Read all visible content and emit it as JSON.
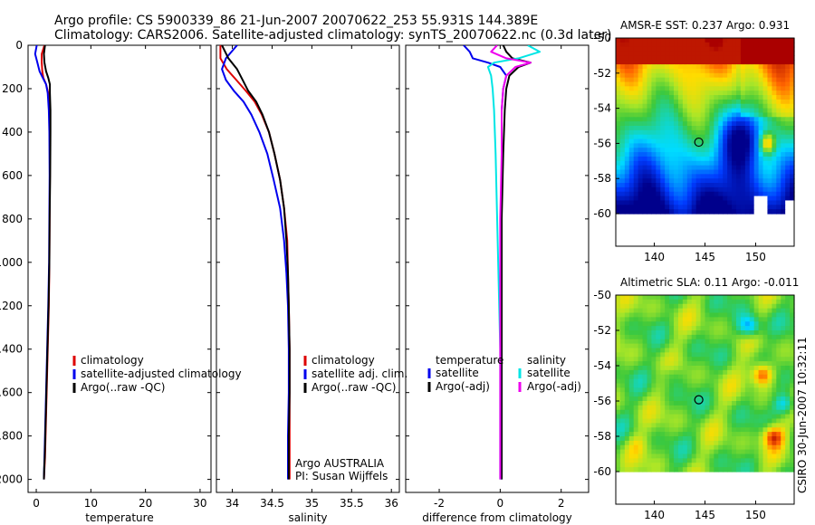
{
  "chart_data": {
    "type": "line",
    "title": {
      "line1": "Argo profile: CS 5900339_86 21-Jun-2007 20070622_253 55.931S 144.389E",
      "line2": "Climatology: CARS2006. Satellite-adjusted climatology: synTS_20070622.nc (0.3d later)"
    },
    "colors": {
      "climatology": "#dd0000",
      "satellite": "#0000ee",
      "argo": "#000000",
      "cyan": "#00e5e5",
      "magenta": "#ee00ee"
    },
    "depth_axis": {
      "ylim": [
        0,
        2060
      ],
      "ticks": [
        "0",
        "200",
        "400",
        "600",
        "800",
        "1000",
        "1200",
        "1400",
        "1600",
        "1800",
        "2000"
      ],
      "tick_values": [
        0,
        200,
        400,
        600,
        800,
        1000,
        1200,
        1400,
        1600,
        1800,
        2000
      ]
    },
    "panels": [
      {
        "id": "temperature",
        "xlabel": "temperature",
        "xlim": [
          -1.5,
          32
        ],
        "xticks": [
          "0",
          "10",
          "20",
          "30"
        ],
        "xtick_values": [
          0,
          10,
          20,
          30
        ],
        "legend": [
          "climatology",
          "satellite-adjusted climatology",
          "Argo(..raw -QC)"
        ],
        "series": [
          {
            "name": "climatology",
            "color": "red",
            "x": [
              1.5,
              1.0,
              1.0,
              1.1,
              1.3,
              1.8,
              2.2,
              2.4,
              2.5,
              2.5,
              2.45,
              2.4,
              2.3,
              2.1,
              1.9,
              1.7,
              1.6,
              1.5,
              1.4
            ],
            "y": [
              0,
              40,
              80,
              120,
              150,
              180,
              220,
              300,
              400,
              600,
              800,
              1000,
              1200,
              1400,
              1600,
              1800,
              1900,
              1950,
              2000
            ]
          },
          {
            "name": "satellite",
            "color": "blue",
            "x": [
              0.1,
              -0.2,
              0.2,
              0.6,
              1.2,
              1.8,
              2.1,
              2.3,
              2.4,
              2.45,
              2.4,
              2.35,
              2.2,
              2.0,
              1.8,
              1.6,
              1.5,
              1.45,
              1.4
            ],
            "y": [
              0,
              40,
              80,
              120,
              150,
              180,
              220,
              300,
              400,
              600,
              800,
              1000,
              1200,
              1400,
              1600,
              1800,
              1900,
              1950,
              2000
            ]
          },
          {
            "name": "argo",
            "color": "black",
            "x": [
              1.6,
              1.4,
              1.5,
              1.8,
              2.2,
              2.5,
              2.5,
              2.6,
              2.6,
              2.55,
              2.45,
              2.4,
              2.25,
              2.05,
              1.85,
              1.65,
              1.55,
              1.45,
              1.4
            ],
            "y": [
              0,
              40,
              80,
              120,
              150,
              180,
              220,
              300,
              400,
              600,
              800,
              1000,
              1200,
              1400,
              1600,
              1800,
              1900,
              1950,
              2000
            ]
          }
        ]
      },
      {
        "id": "salinity",
        "xlabel": "salinity",
        "xlim": [
          33.8,
          36.1
        ],
        "xticks": [
          "34",
          "34.5",
          "35",
          "35.5",
          "36"
        ],
        "xtick_values": [
          34,
          34.5,
          35,
          35.5,
          36
        ],
        "legend": [
          "climatology",
          "satellite adj. clim.",
          "Argo(..raw -QC)"
        ],
        "note": [
          "Argo AUSTRALIA",
          "PI: Susan Wijffels"
        ],
        "series": [
          {
            "name": "climatology",
            "color": "red",
            "x": [
              33.85,
              33.85,
              33.93,
              34.05,
              34.17,
              34.28,
              34.37,
              34.46,
              34.53,
              34.6,
              34.65,
              34.69,
              34.7,
              34.71,
              34.72,
              34.72,
              34.72,
              34.72
            ],
            "y": [
              0,
              60,
              110,
              160,
              210,
              260,
              320,
              400,
              500,
              620,
              750,
              900,
              1050,
              1200,
              1400,
              1600,
              1800,
              2000
            ]
          },
          {
            "name": "satellite",
            "color": "blue",
            "x": [
              34.06,
              33.92,
              33.87,
              33.92,
              34.02,
              34.14,
              34.24,
              34.34,
              34.44,
              34.52,
              34.6,
              34.65,
              34.68,
              34.7,
              34.71,
              34.71,
              34.7,
              34.7
            ],
            "y": [
              0,
              60,
              110,
              160,
              210,
              260,
              320,
              400,
              500,
              620,
              750,
              900,
              1050,
              1200,
              1400,
              1600,
              1800,
              2000
            ]
          },
          {
            "name": "argo",
            "color": "black",
            "x": [
              33.87,
              33.95,
              34.06,
              34.13,
              34.2,
              34.3,
              34.38,
              34.46,
              34.53,
              34.6,
              34.65,
              34.68,
              34.7,
              34.71,
              34.72,
              34.72,
              34.71,
              34.71
            ],
            "y": [
              0,
              60,
              110,
              160,
              210,
              260,
              320,
              400,
              500,
              620,
              750,
              900,
              1050,
              1200,
              1400,
              1600,
              1800,
              2000
            ]
          }
        ]
      },
      {
        "id": "difference",
        "xlabel": "difference from climatology",
        "xlim": [
          -3.1,
          2.9
        ],
        "xticks": [
          "-2",
          "0",
          "2"
        ],
        "xtick_values": [
          -2,
          0,
          2
        ],
        "legend_left_title": "temperature",
        "legend_right_title": "salinity",
        "legend_left": [
          "satellite",
          "Argo(-adj)"
        ],
        "legend_right": [
          "satellite",
          "Argo(-adj)"
        ],
        "series": [
          {
            "name": "temperature satellite",
            "color": "blue",
            "x": [
              -1.2,
              -1.0,
              -0.9,
              -0.4,
              0.0,
              0.2,
              0.1,
              0.05,
              0.05,
              0.05,
              0.05,
              0.05,
              0.05,
              0.05,
              0.05
            ],
            "y": [
              0,
              30,
              60,
              80,
              100,
              140,
              200,
              300,
              500,
              800,
              1100,
              1400,
              1600,
              1800,
              2000
            ]
          },
          {
            "name": "temperature argo",
            "color": "black",
            "x": [
              0.1,
              0.2,
              0.4,
              1.0,
              0.6,
              0.3,
              0.2,
              0.15,
              0.1,
              0.05,
              0.05,
              0.05,
              0.05,
              0.05,
              0.05
            ],
            "y": [
              0,
              30,
              60,
              80,
              100,
              140,
              200,
              300,
              500,
              800,
              1100,
              1400,
              1600,
              1800,
              2000
            ]
          },
          {
            "name": "salinity satellite",
            "color": "cyan",
            "x": [
              0.9,
              1.3,
              0.6,
              -0.2,
              -0.4,
              -0.3,
              -0.25,
              -0.2,
              -0.15,
              -0.1,
              -0.05,
              0.0,
              0.0,
              0.0,
              0.0
            ],
            "y": [
              0,
              30,
              60,
              80,
              100,
              140,
              200,
              300,
              500,
              800,
              1100,
              1400,
              1600,
              1800,
              2000
            ]
          },
          {
            "name": "salinity argo",
            "color": "magenta",
            "x": [
              -0.1,
              -0.3,
              0.2,
              1.0,
              0.5,
              0.2,
              0.1,
              0.05,
              0.05,
              0.0,
              0.0,
              0.0,
              0.0,
              0.0,
              0.0
            ],
            "y": [
              0,
              30,
              60,
              80,
              100,
              140,
              200,
              300,
              500,
              800,
              1100,
              1400,
              1600,
              1800,
              2000
            ]
          }
        ]
      }
    ],
    "maps": [
      {
        "id": "sst",
        "title": "AMSR-E SST: 0.237 Argo: 0.931",
        "kind": "sst",
        "xticks": [
          "140",
          "145",
          "150"
        ],
        "xtick_values": [
          140,
          145,
          150
        ],
        "yticks": [
          "-50",
          "-52",
          "-54",
          "-56",
          "-58",
          "-60"
        ],
        "ytick_values": [
          -50,
          -52,
          -54,
          -56,
          -58,
          -60
        ],
        "lon_range": [
          136.2,
          153.8
        ],
        "lat_range": [
          -50,
          -60
        ],
        "argo_lon": 144.389,
        "argo_lat": -55.931
      },
      {
        "id": "sla",
        "title": "Altimetric SLA: 0.11 Argo: -0.011",
        "kind": "sla",
        "xticks": [
          "140",
          "145",
          "150"
        ],
        "xtick_values": [
          140,
          145,
          150
        ],
        "yticks": [
          "-50",
          "-52",
          "-54",
          "-56",
          "-58",
          "-60"
        ],
        "ytick_values": [
          -50,
          -52,
          -54,
          -56,
          -58,
          -60
        ],
        "lon_range": [
          136.2,
          153.8
        ],
        "lat_range": [
          -50,
          -60
        ],
        "argo_lon": 144.389,
        "argo_lat": -55.931
      }
    ],
    "credit": "CSIRO 30-Jun-2007 10:32:11"
  }
}
